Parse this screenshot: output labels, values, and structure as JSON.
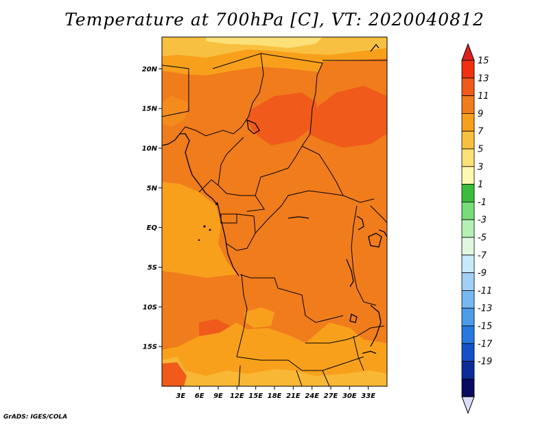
{
  "title": "Temperature at 700hPa [C], VT: 2020040812",
  "credit": "GrADS: IGES/COLA",
  "map": {
    "lon_range": [
      0,
      36
    ],
    "lat_range": [
      -20,
      24
    ],
    "lat_ticks": [
      {
        "value": 20,
        "label": "20N"
      },
      {
        "value": 15,
        "label": "15N"
      },
      {
        "value": 10,
        "label": "10N"
      },
      {
        "value": 5,
        "label": "5N"
      },
      {
        "value": 0,
        "label": "EQ"
      },
      {
        "value": -5,
        "label": "5S"
      },
      {
        "value": -10,
        "label": "10S"
      },
      {
        "value": -15,
        "label": "15S"
      }
    ],
    "lon_ticks": [
      {
        "value": 3,
        "label": "3E"
      },
      {
        "value": 6,
        "label": "6E"
      },
      {
        "value": 9,
        "label": "9E"
      },
      {
        "value": 12,
        "label": "12E"
      },
      {
        "value": 15,
        "label": "15E"
      },
      {
        "value": 18,
        "label": "18E"
      },
      {
        "value": 21,
        "label": "21E"
      },
      {
        "value": 24,
        "label": "24E"
      },
      {
        "value": 27,
        "label": "27E"
      },
      {
        "value": 30,
        "label": "30E"
      },
      {
        "value": 33,
        "label": "33E"
      }
    ]
  },
  "colorbar": {
    "top_color": "#dd2020",
    "bottom_color": "#dcdcf8",
    "bins": [
      {
        "label": "15",
        "color": "#f03010"
      },
      {
        "label": "13",
        "color": "#f05a1a"
      },
      {
        "label": "11",
        "color": "#f07c1c"
      },
      {
        "label": "9",
        "color": "#f8a01c"
      },
      {
        "label": "7",
        "color": "#f8c040"
      },
      {
        "label": "5",
        "color": "#fce078"
      },
      {
        "label": "3",
        "color": "#fcf8b0"
      },
      {
        "label": "1",
        "color": "#3cbc3c"
      },
      {
        "label": "-1",
        "color": "#78dc78"
      },
      {
        "label": "-3",
        "color": "#b4f0b4"
      },
      {
        "label": "-5",
        "color": "#e0f8e0"
      },
      {
        "label": "-7",
        "color": "#c8e8fc"
      },
      {
        "label": "-9",
        "color": "#a0d0f8"
      },
      {
        "label": "-11",
        "color": "#78b8f0"
      },
      {
        "label": "-13",
        "color": "#4c9ce8"
      },
      {
        "label": "-15",
        "color": "#2878e0"
      },
      {
        "label": "-17",
        "color": "#1450c8"
      },
      {
        "label": "-19",
        "color": "#0c2c98"
      },
      {
        "label": "",
        "color": "#0a0a60"
      }
    ]
  }
}
